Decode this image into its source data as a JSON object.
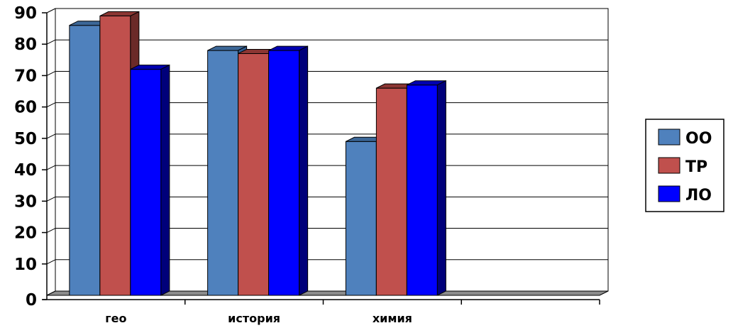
{
  "chart_data": {
    "type": "bar",
    "categories": [
      "гео",
      "история",
      "химия",
      ""
    ],
    "series": [
      {
        "name": "ОО",
        "values": [
          86,
          78,
          49,
          null
        ],
        "color": "#4F81BD",
        "side": "#2F5C8F",
        "top": "#3C6797"
      },
      {
        "name": "ТР",
        "values": [
          89,
          77,
          66,
          null
        ],
        "color": "#C0504D",
        "side": "#6B2A28",
        "top": "#8B3633"
      },
      {
        "name": "ЛО",
        "values": [
          72,
          78,
          67,
          null
        ],
        "color": "#0000FF",
        "side": "#00007A",
        "top": "#0000B0"
      }
    ],
    "ylim": [
      0,
      90
    ],
    "yticks": [
      0,
      10,
      20,
      30,
      40,
      50,
      60,
      70,
      80,
      90
    ],
    "grid": true,
    "legend": "right",
    "three_d": true,
    "title": "",
    "xlabel": "",
    "ylabel": ""
  }
}
